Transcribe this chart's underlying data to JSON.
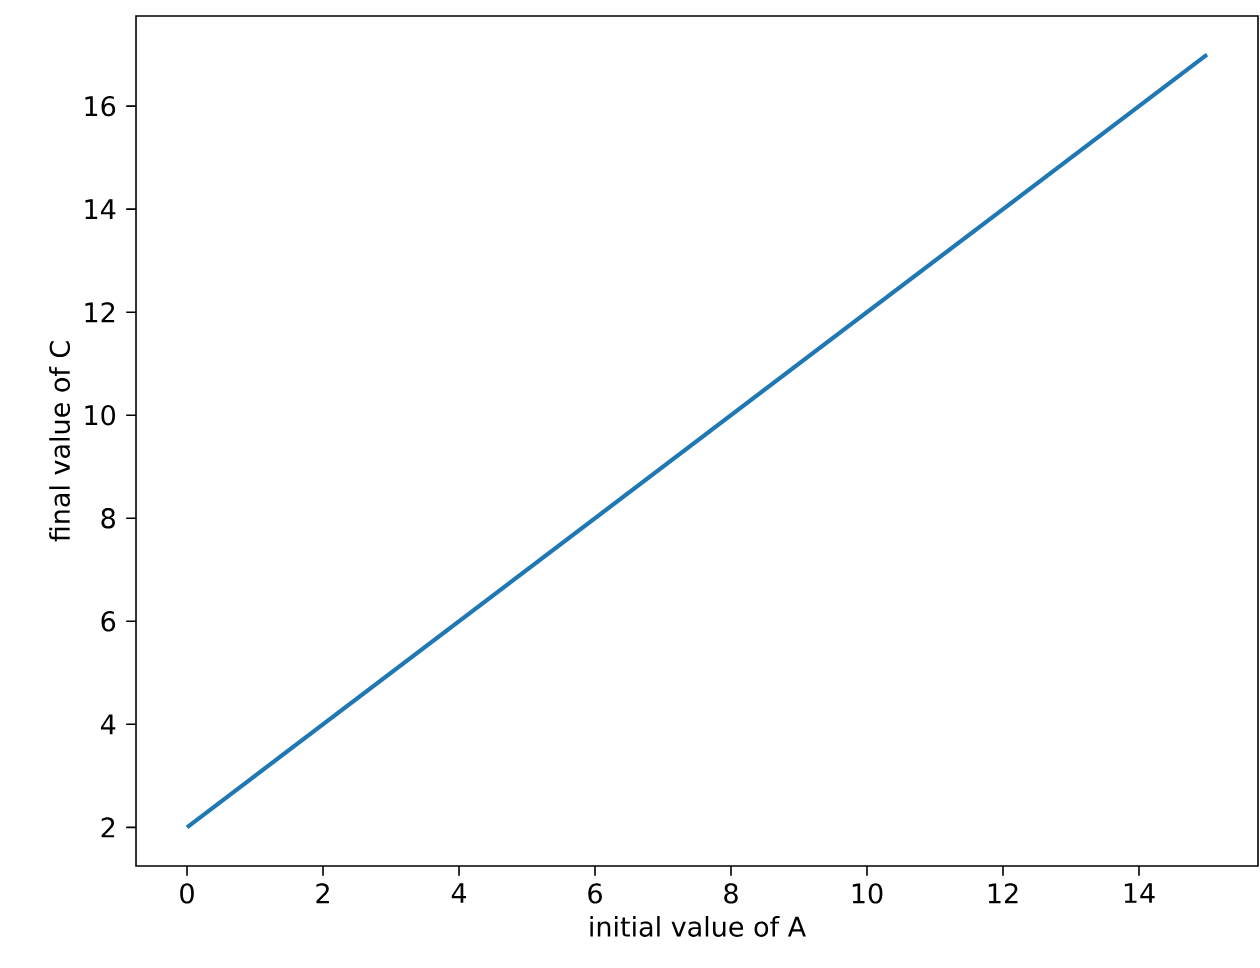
{
  "chart_data": {
    "type": "line",
    "xlabel": "initial value of A",
    "ylabel": "final value of C",
    "x": [
      0,
      15
    ],
    "series": [
      {
        "color": "#1f77b4",
        "values": [
          2,
          17
        ]
      }
    ],
    "xlim": [
      -0.75,
      15.75
    ],
    "ylim": [
      1.25,
      17.75
    ],
    "xticks": [
      0,
      2,
      4,
      6,
      8,
      10,
      12,
      14
    ],
    "yticks": [
      2,
      4,
      6,
      8,
      10,
      12,
      14,
      16
    ],
    "grid": false,
    "marker": "none",
    "line_style": "solid"
  }
}
